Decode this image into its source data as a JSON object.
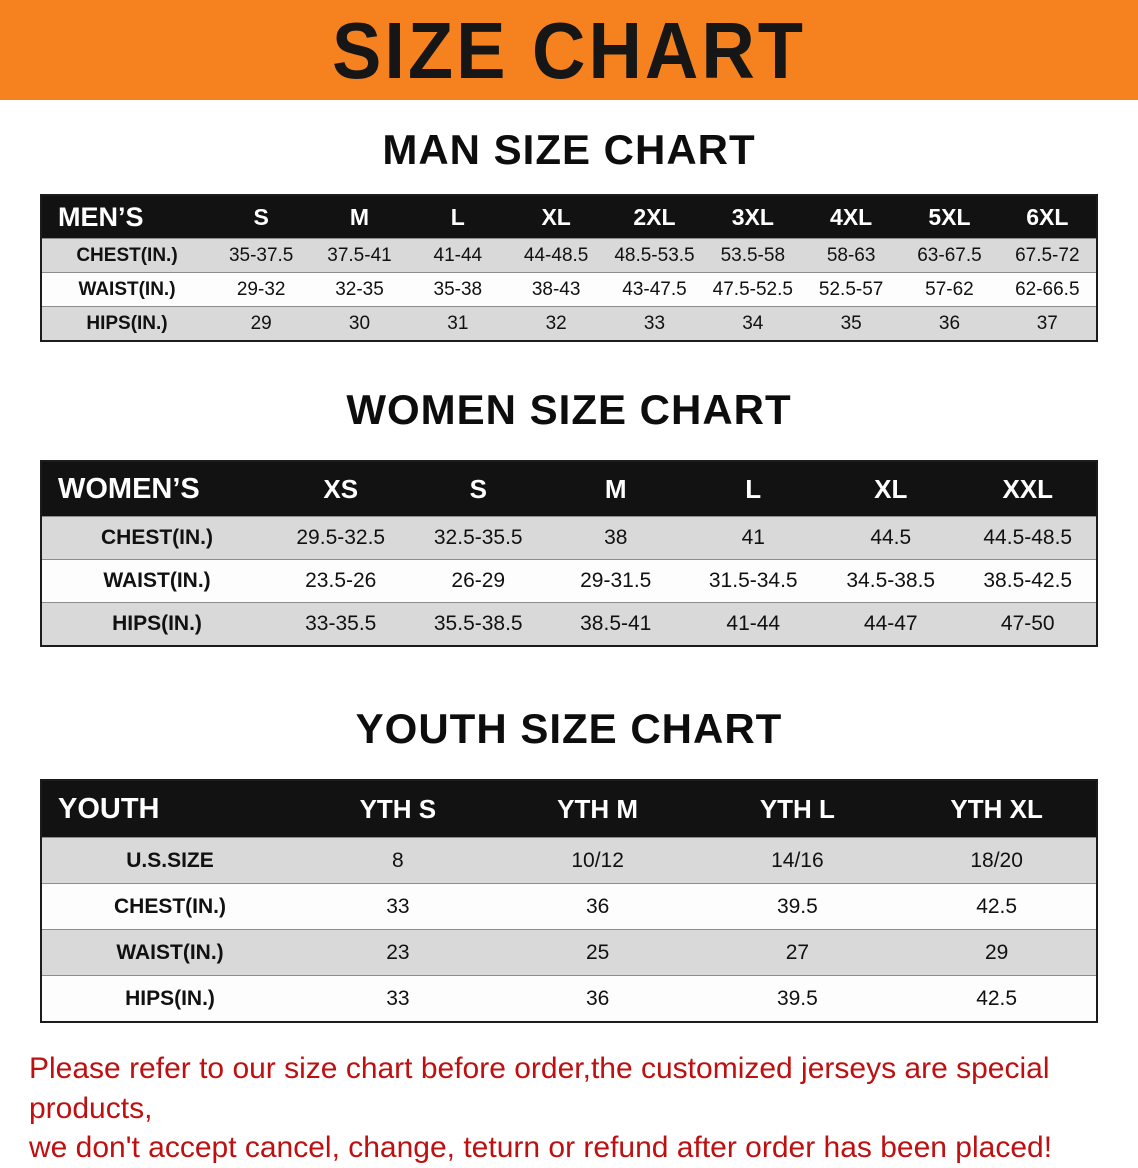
{
  "banner": {
    "title": "SIZE CHART"
  },
  "colors": {
    "banner_orange": "#F5821F",
    "table_header_black": "#121212",
    "stripe_gray": "#D9D9D9",
    "notice_red": "#BE1010"
  },
  "sections": [
    {
      "id": "men",
      "heading": "MAN SIZE CHART",
      "table": {
        "header": [
          "MEN’S",
          "S",
          "M",
          "L",
          "XL",
          "2XL",
          "3XL",
          "4XL",
          "5XL",
          "6XL"
        ],
        "rows": [
          [
            "CHEST(IN.)",
            "35-37.5",
            "37.5-41",
            "41-44",
            "44-48.5",
            "48.5-53.5",
            "53.5-58",
            "58-63",
            "63-67.5",
            "67.5-72"
          ],
          [
            "WAIST(IN.)",
            "29-32",
            "32-35",
            "35-38",
            "38-43",
            "43-47.5",
            "47.5-52.5",
            "52.5-57",
            "57-62",
            "62-66.5"
          ],
          [
            "HIPS(IN.)",
            "29",
            "30",
            "31",
            "32",
            "33",
            "34",
            "35",
            "36",
            "37"
          ]
        ]
      }
    },
    {
      "id": "women",
      "heading": "WOMEN SIZE CHART",
      "table": {
        "header": [
          "WOMEN’S",
          "XS",
          "S",
          "M",
          "L",
          "XL",
          "XXL"
        ],
        "rows": [
          [
            "CHEST(IN.)",
            "29.5-32.5",
            "32.5-35.5",
            "38",
            "41",
            "44.5",
            "44.5-48.5"
          ],
          [
            "WAIST(IN.)",
            "23.5-26",
            "26-29",
            "29-31.5",
            "31.5-34.5",
            "34.5-38.5",
            "38.5-42.5"
          ],
          [
            "HIPS(IN.)",
            "33-35.5",
            "35.5-38.5",
            "38.5-41",
            "41-44",
            "44-47",
            "47-50"
          ]
        ]
      }
    },
    {
      "id": "youth",
      "heading": "YOUTH SIZE CHART",
      "table": {
        "header": [
          "YOUTH",
          "YTH S",
          "YTH M",
          "YTH L",
          "YTH XL"
        ],
        "rows": [
          [
            "U.S.SIZE",
            "8",
            "10/12",
            "14/16",
            "18/20"
          ],
          [
            "CHEST(IN.)",
            "33",
            "36",
            "39.5",
            "42.5"
          ],
          [
            "WAIST(IN.)",
            "23",
            "25",
            "27",
            "29"
          ],
          [
            "HIPS(IN.)",
            "33",
            "36",
            "39.5",
            "42.5"
          ]
        ]
      }
    }
  ],
  "footer": {
    "line1": "Please refer to our size chart before order,the customized jerseys are special products,",
    "line2": "we don't accept cancel, change, teturn or refund after order has been placed!"
  }
}
